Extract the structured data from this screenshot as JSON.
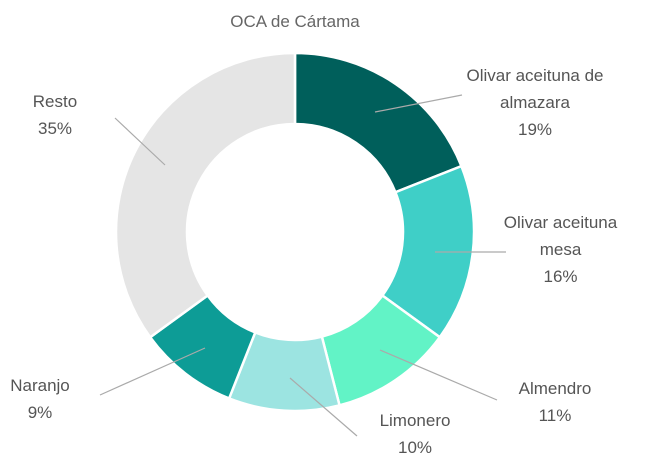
{
  "chart_data": {
    "type": "donut",
    "title": "OCA de Cártama",
    "categories": [
      "Olivar aceituna de almazara",
      "Olivar aceituna mesa",
      "Almendro",
      "Limonero",
      "Naranjo",
      "Resto"
    ],
    "values": [
      19,
      16,
      11,
      10,
      9,
      35
    ],
    "value_labels": [
      "19%",
      "16%",
      "11%",
      "10%",
      "9%",
      "35%"
    ],
    "colors": [
      "#005f5b",
      "#3fcfc7",
      "#62f3c6",
      "#9ce4e1",
      "#0d9c96",
      "#e5e5e5"
    ]
  }
}
